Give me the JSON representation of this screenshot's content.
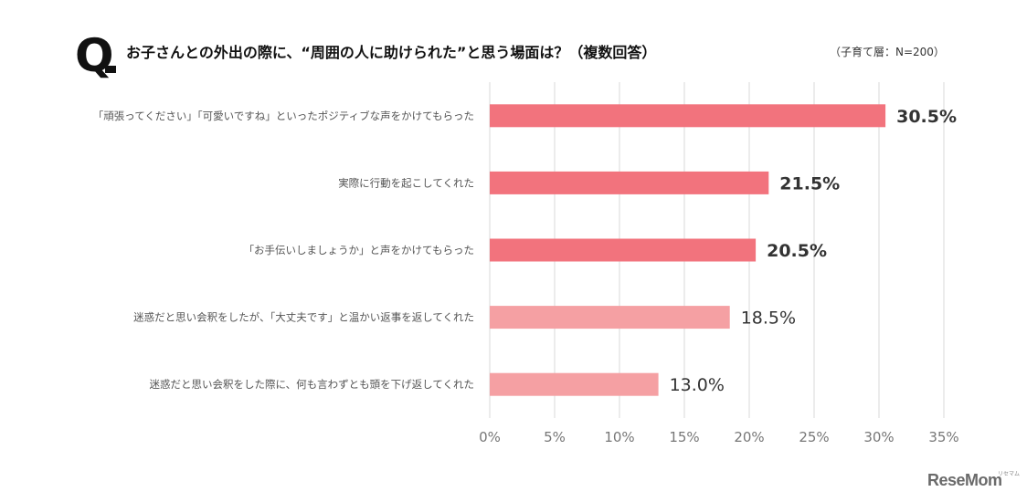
{
  "header": {
    "q_mark": "Q",
    "question": "お子さんとの外出の際に、“周囲の人に助けられた”と思う場面は？（複数回答）",
    "sample": "（子育て層：N=200）"
  },
  "chart_data": {
    "type": "bar",
    "orientation": "horizontal",
    "title": "お子さんとの外出の際に、“周囲の人に助けられた”と思う場面は？（複数回答）",
    "categories": [
      "「頑張ってください」「可愛いですね」といったポジティブな声をかけてもらった",
      "実際に行動を起こしてくれた",
      "「お手伝いしましょうか」と声をかけてもらった",
      "迷惑だと思い会釈をしたが、「大丈夫です」と温かい返事を返してくれた",
      "迷惑だと思い会釈をした際に、何も言わずとも頭を下げ返してくれた"
    ],
    "values": [
      30.5,
      21.5,
      20.5,
      18.5,
      13.0
    ],
    "value_labels": [
      "30.5%",
      "21.5%",
      "20.5%",
      "18.5%",
      "13.0%"
    ],
    "xlim": [
      0,
      35
    ],
    "xticks": [
      "0%",
      "5%",
      "10%",
      "15%",
      "20%",
      "25%",
      "30%",
      "35%"
    ],
    "grid": "vertical gridlines",
    "colors": [
      "#f2737d",
      "#f2737d",
      "#f2737d",
      "#f5a0a3",
      "#f5a0a3"
    ]
  },
  "logo": {
    "text": "ReseMom",
    "sub": "リセマム"
  }
}
